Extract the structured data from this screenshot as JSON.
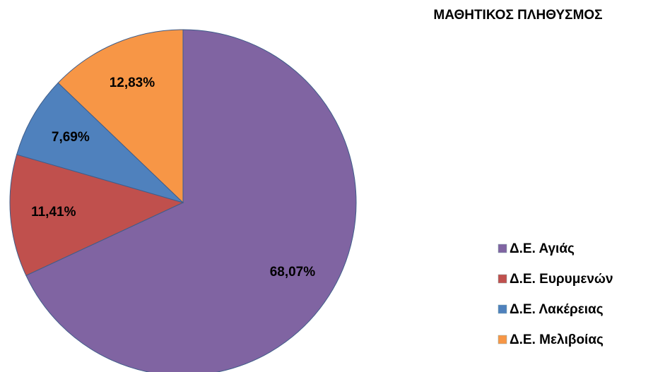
{
  "chart_data": {
    "type": "pie",
    "title": "ΜΑΘΗΤΙΚΟΣ ΠΛΗΘΥΣΜΟΣ",
    "categories": [
      "Δ.Ε. Αγιάς",
      "Δ.Ε. Ευρυμενών",
      "Δ.Ε. Λακέρειας",
      "Δ.Ε. Μελιβοίας"
    ],
    "values": [
      68.07,
      11.41,
      7.69,
      12.83
    ],
    "value_labels": [
      "68,07%",
      "11,41%",
      "7,69%",
      "12,83%"
    ],
    "colors": [
      "#8064a2",
      "#c0504d",
      "#4f81bd",
      "#f79646"
    ],
    "legend": "right"
  }
}
